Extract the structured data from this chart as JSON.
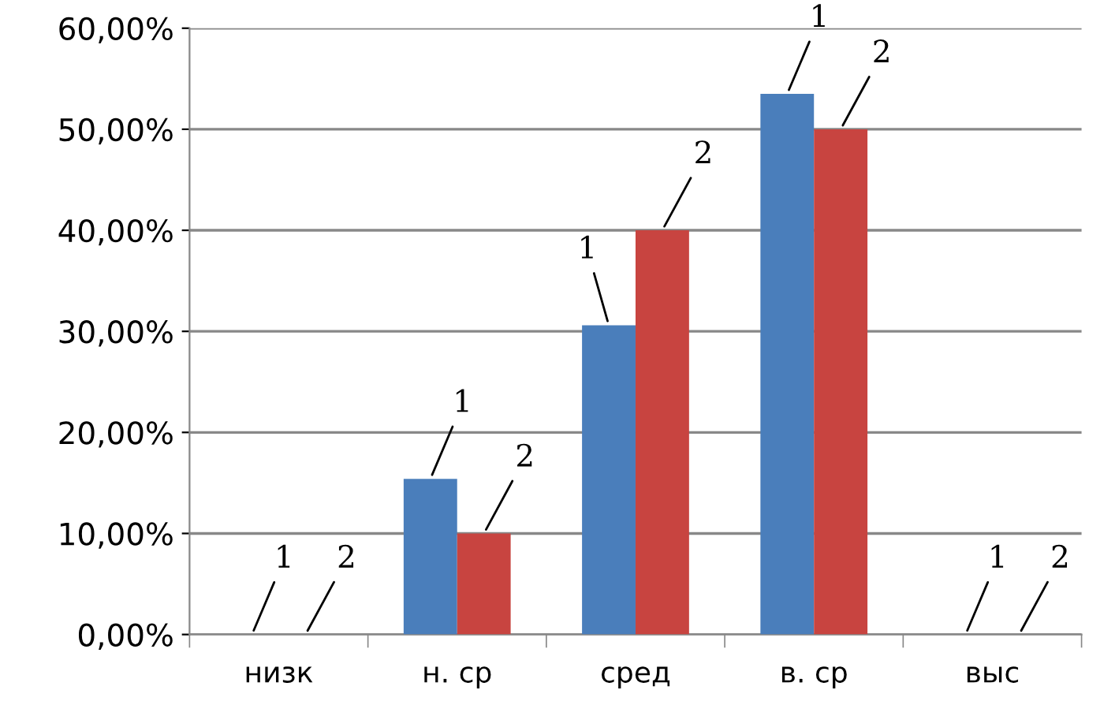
{
  "chart_data": {
    "type": "bar",
    "categories": [
      "низк",
      "н. ср",
      "сред",
      "в. ср",
      "выс"
    ],
    "series": [
      {
        "name": "1",
        "color": "#4a7ebb",
        "values": [
          0,
          15.4,
          30.6,
          53.5,
          0
        ]
      },
      {
        "name": "2",
        "color": "#c84440",
        "values": [
          0,
          10,
          40,
          50,
          0
        ]
      }
    ],
    "ylim": [
      0,
      60
    ],
    "yticks": [
      {
        "value": 0,
        "label": "0,00%"
      },
      {
        "value": 10,
        "label": "10,00%"
      },
      {
        "value": 20,
        "label": "20,00%"
      },
      {
        "value": 30,
        "label": "30,00%"
      },
      {
        "value": 40,
        "label": "40,00%"
      },
      {
        "value": 50,
        "label": "50,00%"
      },
      {
        "value": 60,
        "label": "60,00%"
      }
    ],
    "grid": "y",
    "legend": false
  }
}
